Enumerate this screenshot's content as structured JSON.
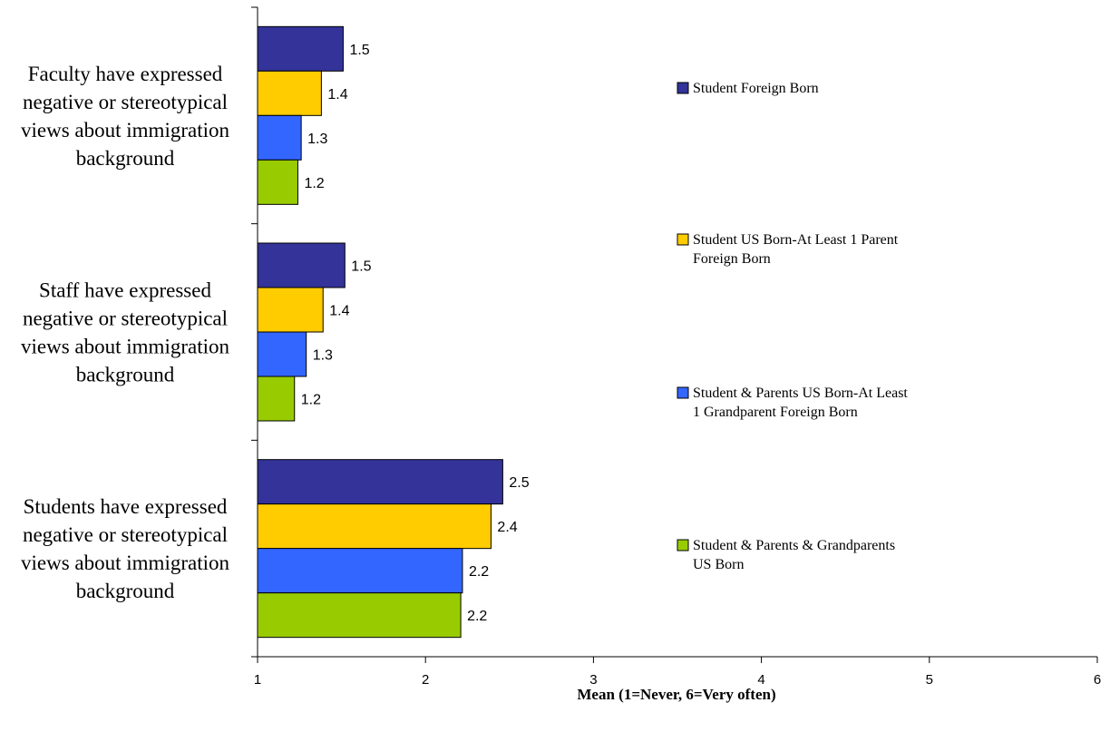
{
  "chart_data": {
    "type": "bar",
    "orientation": "horizontal",
    "title": "",
    "xlabel": "Mean (1=Never, 6=Very often)",
    "ylabel": "",
    "xlim": [
      1,
      6
    ],
    "x_ticks": [
      "1",
      "2",
      "3",
      "4",
      "5",
      "6"
    ],
    "grid": false,
    "legend_position": "right",
    "categories": [
      "Faculty have expressed negative or stereotypical views about immigration background",
      "Staff have expressed negative or stereotypical views about immigration background",
      "Students have expressed negative or stereotypical views about immigration background"
    ],
    "category_lines": [
      [
        "Faculty have expressed",
        "negative or stereotypical",
        "views about immigration",
        "background"
      ],
      [
        "Staff have expressed",
        "negative or stereotypical",
        "views about immigration",
        "background"
      ],
      [
        "Students have expressed",
        "negative or stereotypical",
        "views about immigration",
        "background"
      ]
    ],
    "series": [
      {
        "name": "Student Foreign Born",
        "legend_lines": [
          "Student Foreign Born"
        ],
        "color": "#333399",
        "values": [
          1.51,
          1.52,
          2.46
        ],
        "labels": [
          "1.5",
          "1.5",
          "2.5"
        ]
      },
      {
        "name": "Student US Born-At Least 1 Parent Foreign Born",
        "legend_lines": [
          "Student US Born-At Least 1 Parent",
          "Foreign Born"
        ],
        "color": "#FFCC00",
        "values": [
          1.38,
          1.39,
          2.39
        ],
        "labels": [
          "1.4",
          "1.4",
          "2.4"
        ]
      },
      {
        "name": "Student & Parents US Born-At Least 1 Grandparent Foreign Born",
        "legend_lines": [
          "Student & Parents US Born-At Least",
          "1 Grandparent Foreign Born"
        ],
        "color": "#3366FF",
        "values": [
          1.26,
          1.29,
          2.22
        ],
        "labels": [
          "1.3",
          "1.3",
          "2.2"
        ]
      },
      {
        "name": "Student & Parents & Grandparents US Born",
        "legend_lines": [
          "Student & Parents & Grandparents",
          "US Born"
        ],
        "color": "#99CC00",
        "values": [
          1.24,
          1.22,
          2.21
        ],
        "labels": [
          "1.2",
          "1.2",
          "2.2"
        ]
      }
    ]
  }
}
